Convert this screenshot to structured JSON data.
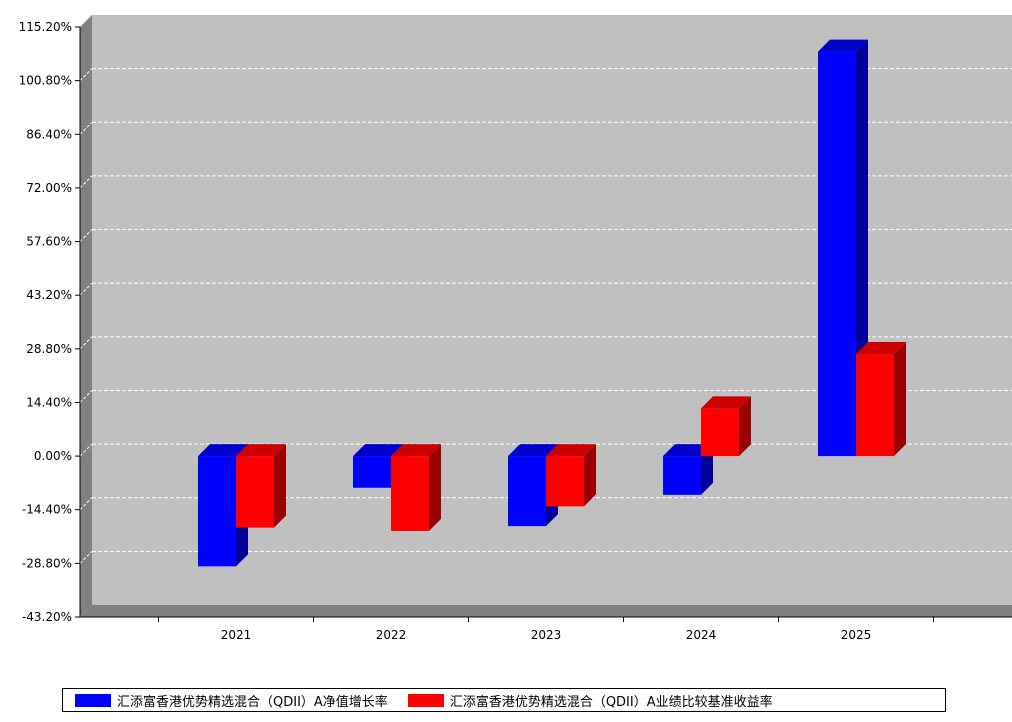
{
  "chart_data": {
    "type": "bar",
    "categories": [
      "2021",
      "2022",
      "2023",
      "2024",
      "2025"
    ],
    "series": [
      {
        "name": "汇添富香港优势精选混合（QDII）A净值增长率",
        "color": "#0000ff",
        "values": [
          -29.6,
          -8.5,
          -18.8,
          -10.4,
          108.6
        ]
      },
      {
        "name": "汇添富香港优势精选混合（QDII）A业绩比较基准收益率",
        "color": "#ff0000",
        "values": [
          -19.2,
          -20.1,
          -13.5,
          12.8,
          27.4
        ]
      }
    ],
    "y_ticks": [
      "115.20%",
      "100.80%",
      "86.40%",
      "72.00%",
      "57.60%",
      "43.20%",
      "28.80%",
      "14.40%",
      "0.00%",
      "-14.40%",
      "-28.80%",
      "-43.20%"
    ],
    "ylim": [
      -43.2,
      115.2
    ],
    "grid": true,
    "legend_position": "bottom",
    "background": "#c0c0c0"
  }
}
